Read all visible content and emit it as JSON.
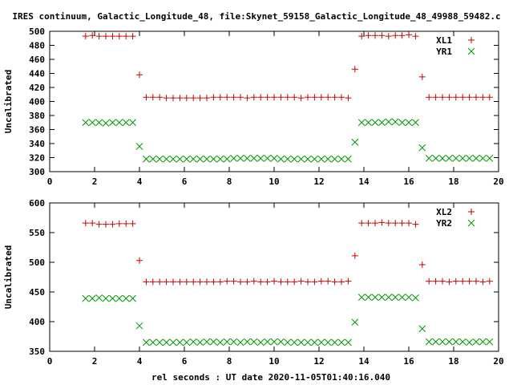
{
  "title": "IRES continuum, Galactic_Longitude_48, file:Skynet_59158_Galactic_Longitude_48_49988_59482.c",
  "xlabel": "rel seconds : UT date 2020-11-05T01:40:16.040",
  "colors": {
    "xl": "#cc0000",
    "yr": "#009900",
    "axis": "#000000"
  },
  "chart_data": [
    {
      "type": "scatter",
      "ylabel": "Uncalibrated",
      "xlim": [
        0,
        20
      ],
      "ylim": [
        300,
        500
      ],
      "xticks": [
        0,
        2,
        4,
        6,
        8,
        10,
        12,
        14,
        16,
        18,
        20
      ],
      "yticks": [
        300,
        320,
        340,
        360,
        380,
        400,
        420,
        440,
        460,
        480,
        500
      ],
      "grid": false,
      "legend": "top-right",
      "series": [
        {
          "name": "XL1",
          "marker": "plus",
          "x": [
            1.6,
            1.9,
            2.2,
            2.5,
            2.8,
            3.1,
            3.4,
            3.7,
            4.0,
            4.3,
            4.6,
            4.9,
            5.2,
            5.5,
            5.8,
            6.1,
            6.4,
            6.7,
            7.0,
            7.3,
            7.6,
            7.9,
            8.2,
            8.5,
            8.8,
            9.1,
            9.4,
            9.7,
            10.0,
            10.3,
            10.6,
            10.9,
            11.2,
            11.5,
            11.8,
            12.1,
            12.4,
            12.7,
            13.0,
            13.3,
            13.6,
            13.9,
            14.2,
            14.5,
            14.8,
            15.1,
            15.4,
            15.7,
            16.0,
            16.3,
            16.6,
            16.9,
            17.2,
            17.5,
            17.8,
            18.1,
            18.4,
            18.7,
            19.0,
            19.3,
            19.6
          ],
          "y": [
            493,
            494,
            493,
            493,
            493,
            493,
            493,
            493,
            438,
            406,
            406,
            406,
            405,
            405,
            405,
            405,
            405,
            405,
            405,
            406,
            406,
            406,
            406,
            406,
            405,
            406,
            406,
            406,
            406,
            406,
            406,
            406,
            405,
            406,
            406,
            406,
            406,
            406,
            406,
            405,
            446,
            493,
            494,
            494,
            494,
            493,
            494,
            494,
            495,
            493,
            435,
            406,
            406,
            406,
            406,
            406,
            406,
            406,
            406,
            406,
            406
          ]
        },
        {
          "name": "YR1",
          "marker": "cross",
          "x": [
            1.6,
            1.9,
            2.2,
            2.5,
            2.8,
            3.1,
            3.4,
            3.7,
            4.0,
            4.3,
            4.6,
            4.9,
            5.2,
            5.5,
            5.8,
            6.1,
            6.4,
            6.7,
            7.0,
            7.3,
            7.6,
            7.9,
            8.2,
            8.5,
            8.8,
            9.1,
            9.4,
            9.7,
            10.0,
            10.3,
            10.6,
            10.9,
            11.2,
            11.5,
            11.8,
            12.1,
            12.4,
            12.7,
            13.0,
            13.3,
            13.6,
            13.9,
            14.2,
            14.5,
            14.8,
            15.1,
            15.4,
            15.7,
            16.0,
            16.3,
            16.6,
            16.9,
            17.2,
            17.5,
            17.8,
            18.1,
            18.4,
            18.7,
            19.0,
            19.3,
            19.6
          ],
          "y": [
            370,
            370,
            370,
            369,
            370,
            370,
            370,
            370,
            336,
            318,
            318,
            318,
            318,
            318,
            318,
            318,
            318,
            318,
            318,
            318,
            318,
            318,
            319,
            319,
            319,
            319,
            319,
            319,
            319,
            318,
            318,
            318,
            318,
            318,
            318,
            318,
            318,
            318,
            318,
            318,
            342,
            370,
            370,
            370,
            370,
            371,
            371,
            370,
            370,
            370,
            334,
            319,
            319,
            319,
            319,
            319,
            319,
            319,
            319,
            319,
            319
          ]
        }
      ]
    },
    {
      "type": "scatter",
      "ylabel": "Uncalibrated",
      "xlim": [
        0,
        20
      ],
      "ylim": [
        350,
        600
      ],
      "xticks": [
        0,
        2,
        4,
        6,
        8,
        10,
        12,
        14,
        16,
        18,
        20
      ],
      "yticks": [
        350,
        400,
        450,
        500,
        550,
        600
      ],
      "grid": false,
      "legend": "top-right",
      "series": [
        {
          "name": "XL2",
          "marker": "plus",
          "x": [
            1.6,
            1.9,
            2.2,
            2.5,
            2.8,
            3.1,
            3.4,
            3.7,
            4.0,
            4.3,
            4.6,
            4.9,
            5.2,
            5.5,
            5.8,
            6.1,
            6.4,
            6.7,
            7.0,
            7.3,
            7.6,
            7.9,
            8.2,
            8.5,
            8.8,
            9.1,
            9.4,
            9.7,
            10.0,
            10.3,
            10.6,
            10.9,
            11.2,
            11.5,
            11.8,
            12.1,
            12.4,
            12.7,
            13.0,
            13.3,
            13.6,
            13.9,
            14.2,
            14.5,
            14.8,
            15.1,
            15.4,
            15.7,
            16.0,
            16.3,
            16.6,
            16.9,
            17.2,
            17.5,
            17.8,
            18.1,
            18.4,
            18.7,
            19.0,
            19.3,
            19.6
          ],
          "y": [
            566,
            566,
            564,
            564,
            564,
            565,
            565,
            565,
            503,
            467,
            467,
            467,
            467,
            467,
            467,
            467,
            467,
            467,
            467,
            467,
            467,
            468,
            468,
            467,
            467,
            468,
            467,
            467,
            468,
            467,
            467,
            467,
            468,
            467,
            467,
            468,
            468,
            467,
            467,
            468,
            511,
            566,
            566,
            566,
            567,
            566,
            566,
            566,
            566,
            564,
            496,
            468,
            468,
            468,
            467,
            468,
            468,
            468,
            468,
            467,
            468
          ]
        },
        {
          "name": "YR2",
          "marker": "cross",
          "x": [
            1.6,
            1.9,
            2.2,
            2.5,
            2.8,
            3.1,
            3.4,
            3.7,
            4.0,
            4.3,
            4.6,
            4.9,
            5.2,
            5.5,
            5.8,
            6.1,
            6.4,
            6.7,
            7.0,
            7.3,
            7.6,
            7.9,
            8.2,
            8.5,
            8.8,
            9.1,
            9.4,
            9.7,
            10.0,
            10.3,
            10.6,
            10.9,
            11.2,
            11.5,
            11.8,
            12.1,
            12.4,
            12.7,
            13.0,
            13.3,
            13.6,
            13.9,
            14.2,
            14.5,
            14.8,
            15.1,
            15.4,
            15.7,
            16.0,
            16.3,
            16.6,
            16.9,
            17.2,
            17.5,
            17.8,
            18.1,
            18.4,
            18.7,
            19.0,
            19.3,
            19.6
          ],
          "y": [
            439,
            439,
            440,
            439,
            439,
            439,
            439,
            439,
            393,
            365,
            365,
            365,
            365,
            365,
            365,
            365,
            366,
            365,
            366,
            366,
            365,
            366,
            366,
            365,
            366,
            366,
            365,
            366,
            366,
            366,
            365,
            365,
            365,
            365,
            365,
            365,
            365,
            365,
            365,
            365,
            399,
            441,
            441,
            441,
            441,
            441,
            441,
            441,
            441,
            440,
            388,
            366,
            366,
            366,
            366,
            366,
            366,
            365,
            366,
            366,
            366
          ]
        }
      ]
    }
  ]
}
